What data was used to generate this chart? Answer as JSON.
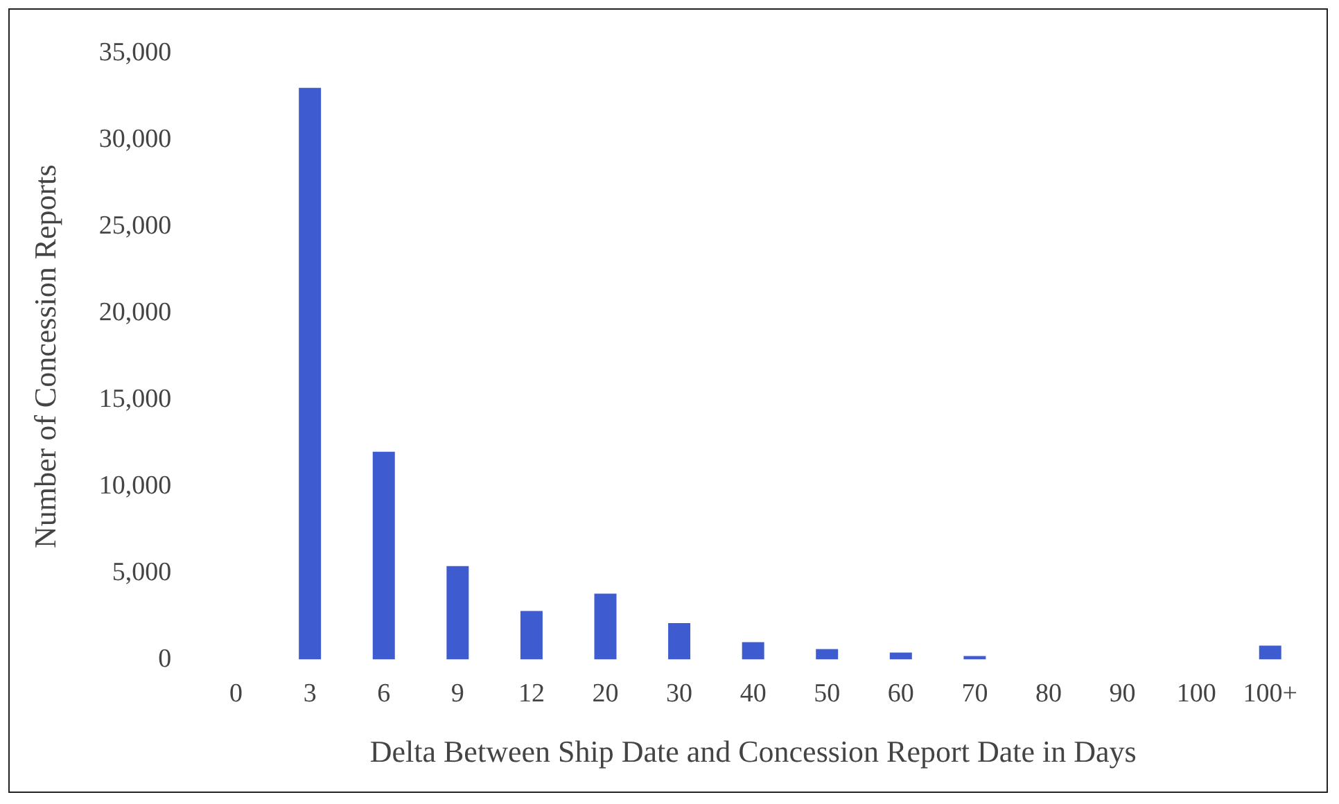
{
  "chart_data": {
    "type": "bar",
    "xlabel": "Delta Between Ship Date and Concession Report Date in Days",
    "ylabel": "Number of Concession Reports",
    "categories": [
      "0",
      "3",
      "6",
      "9",
      "12",
      "20",
      "30",
      "40",
      "50",
      "60",
      "70",
      "80",
      "90",
      "100",
      "100+"
    ],
    "values": [
      null,
      33000,
      12000,
      5400,
      2800,
      3800,
      2100,
      1000,
      600,
      400,
      200,
      null,
      null,
      null,
      800
    ],
    "color": "#3f5bd0",
    "ylim": [
      0,
      35000
    ],
    "yticks": [
      {
        "value": 0,
        "label": "0"
      },
      {
        "value": 5000,
        "label": "5,000"
      },
      {
        "value": 10000,
        "label": "10,000"
      },
      {
        "value": 15000,
        "label": "15,000"
      },
      {
        "value": 20000,
        "label": "20,000"
      },
      {
        "value": 25000,
        "label": "25,000"
      },
      {
        "value": 30000,
        "label": "30,000"
      },
      {
        "value": 35000,
        "label": "35,000"
      }
    ]
  }
}
